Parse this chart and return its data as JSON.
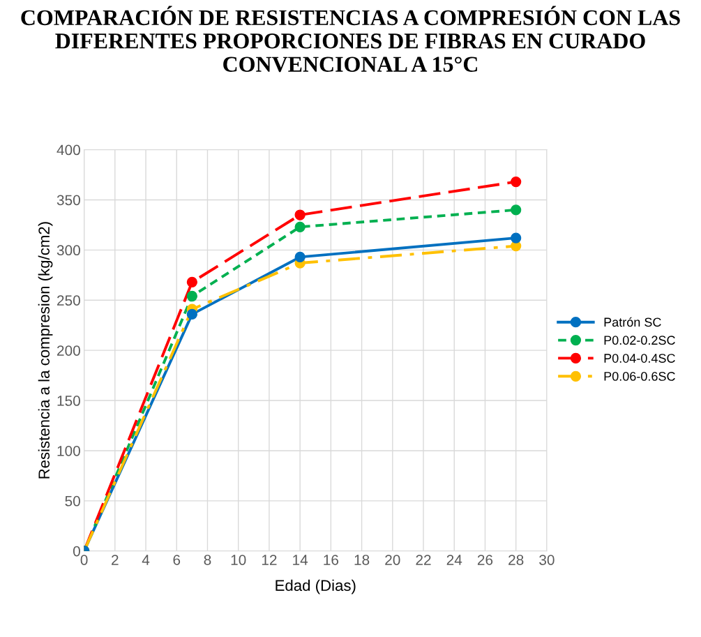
{
  "chart_data": {
    "type": "line",
    "title": "COMPARACIÓN DE RESISTENCIAS A COMPRESIÓN CON LAS DIFERENTES PROPORCIONES DE FIBRAS EN CURADO CONVENCIONAL A 15°C",
    "xlabel": "Edad (Dias)",
    "ylabel": "Resistencia a la compresion (kg/cm2)",
    "x": [
      0,
      7,
      14,
      28
    ],
    "series": [
      {
        "name": "Patrón SC",
        "color": "#0070c0",
        "values": [
          0,
          236,
          293,
          312
        ],
        "line_style": "solid"
      },
      {
        "name": "P0.02-0.2SC",
        "color": "#00b050",
        "values": [
          0,
          254,
          323,
          340
        ],
        "line_style": "dotted"
      },
      {
        "name": "P0.04-0.4SC",
        "color": "#ff0000",
        "values": [
          0,
          268,
          335,
          368
        ],
        "line_style": "dashed"
      },
      {
        "name": "P0.06-0.6SC",
        "color": "#ffc000",
        "values": [
          0,
          241,
          287,
          304
        ],
        "line_style": "dashdot"
      }
    ],
    "xlim": [
      0,
      30
    ],
    "xticks": [
      0,
      2,
      4,
      6,
      8,
      10,
      12,
      14,
      16,
      18,
      20,
      22,
      24,
      26,
      28,
      30
    ],
    "ylim": [
      0,
      400
    ],
    "yticks": [
      0,
      50,
      100,
      150,
      200,
      250,
      300,
      350,
      400
    ],
    "grid": true,
    "legend": "right",
    "marker": "circle"
  }
}
